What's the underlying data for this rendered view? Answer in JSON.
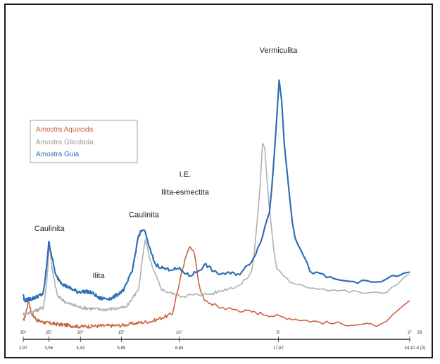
{
  "chart_data": {
    "type": "line",
    "title": "",
    "xlabel": "",
    "ylabel": "",
    "axis_2theta": {
      "unit_label": "2θ",
      "ticks": [
        {
          "value": 30,
          "label": "30°"
        },
        {
          "value": 25,
          "label": "25°"
        },
        {
          "value": 20,
          "label": "20°"
        },
        {
          "value": 15,
          "label": "15°"
        },
        {
          "value": 10,
          "label": "10°"
        },
        {
          "value": 5,
          "label": "5°"
        },
        {
          "value": 2,
          "label": "2°"
        }
      ]
    },
    "axis_d": {
      "unit_label": "d (Å)",
      "ticks": [
        "2,97",
        "3,56",
        "4,43",
        "5,89",
        "8,84",
        "17,67",
        "44,10"
      ]
    },
    "xlim": [
      30,
      2
    ],
    "ylim": [
      0,
      100
    ],
    "legend": {
      "position": "left",
      "entries": [
        {
          "label": "Amostra Aquecida",
          "color": "#c8643c"
        },
        {
          "label": "Amostra Glicolada",
          "color": "#b0b0b0"
        },
        {
          "label": "Amostra Guia",
          "color": "#2e6fb5"
        }
      ]
    },
    "series": [
      {
        "name": "Amostra Aquecida",
        "color": "#c8643c",
        "baseline": 6,
        "points": [
          [
            30,
            6
          ],
          [
            29.6,
            8
          ],
          [
            28.9,
            15
          ],
          [
            28.2,
            9
          ],
          [
            27,
            6
          ],
          [
            25,
            5
          ],
          [
            20,
            3.5
          ],
          [
            15,
            4
          ],
          [
            12,
            6
          ],
          [
            10.5,
            9
          ],
          [
            9.8,
            28
          ],
          [
            9.3,
            40
          ],
          [
            9.0,
            36
          ],
          [
            8.7,
            22
          ],
          [
            8.4,
            15
          ],
          [
            7.5,
            12
          ],
          [
            6,
            10
          ],
          [
            5,
            8
          ],
          [
            3.5,
            5
          ],
          [
            2.4,
            4
          ],
          [
            2,
            15
          ]
        ]
      },
      {
        "name": "Amostra Glicolada",
        "color": "#b0b0b0",
        "baseline": 9,
        "points": [
          [
            30,
            9
          ],
          [
            28,
            10
          ],
          [
            26,
            12
          ],
          [
            25.4,
            22
          ],
          [
            24.9,
            41
          ],
          [
            24.4,
            28
          ],
          [
            23.5,
            17
          ],
          [
            22,
            14
          ],
          [
            20,
            12
          ],
          [
            17,
            11
          ],
          [
            14.5,
            12
          ],
          [
            13.3,
            20
          ],
          [
            12.7,
            42
          ],
          [
            12.1,
            30
          ],
          [
            11.3,
            20
          ],
          [
            10,
            17
          ],
          [
            8,
            18
          ],
          [
            6.5,
            22
          ],
          [
            6,
            28
          ],
          [
            5.7,
            62
          ],
          [
            5.55,
            92
          ],
          [
            5.4,
            65
          ],
          [
            5.1,
            30
          ],
          [
            4.5,
            22
          ],
          [
            3,
            19
          ],
          [
            2.4,
            18
          ],
          [
            2,
            27
          ]
        ]
      },
      {
        "name": "Amostra Guia",
        "color": "#2e6fb5",
        "baseline": 17,
        "points": [
          [
            30,
            18
          ],
          [
            29.8,
            15
          ],
          [
            28,
            16
          ],
          [
            26,
            18
          ],
          [
            25.5,
            28
          ],
          [
            25,
            41
          ],
          [
            24.5,
            35
          ],
          [
            23.8,
            26
          ],
          [
            22.5,
            22
          ],
          [
            20.5,
            19
          ],
          [
            19,
            19
          ],
          [
            18.2,
            18
          ],
          [
            17.5,
            16
          ],
          [
            16,
            16
          ],
          [
            14.7,
            20
          ],
          [
            13.9,
            28
          ],
          [
            13.3,
            44
          ],
          [
            12.8,
            47
          ],
          [
            12.3,
            38
          ],
          [
            11.8,
            31
          ],
          [
            11,
            29
          ],
          [
            10,
            29
          ],
          [
            9.3,
            26
          ],
          [
            8.8,
            28
          ],
          [
            8.3,
            31
          ],
          [
            7.7,
            27
          ],
          [
            6.5,
            27
          ],
          [
            6,
            33
          ],
          [
            5.7,
            40
          ],
          [
            5.3,
            55
          ],
          [
            5.1,
            88
          ],
          [
            4.95,
            118
          ],
          [
            4.8,
            85
          ],
          [
            4.5,
            45
          ],
          [
            4.0,
            28
          ],
          [
            3.3,
            24
          ],
          [
            2.5,
            23
          ],
          [
            2,
            28
          ]
        ]
      }
    ],
    "annotations": [
      {
        "text": "Caulinita",
        "x": 24.9,
        "y": 46
      },
      {
        "text": "Ilita",
        "x": 17.6,
        "y": 25
      },
      {
        "text": "Caulinita",
        "x": 12.8,
        "y": 52
      },
      {
        "text": "I.E.",
        "x": 9.6,
        "y": 70
      },
      {
        "text": "Ilita-esmectita",
        "x": 9.6,
        "y": 62
      },
      {
        "text": "Vermiculita",
        "x": 5.0,
        "y": 125
      }
    ]
  }
}
